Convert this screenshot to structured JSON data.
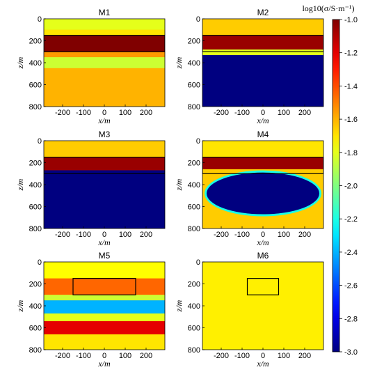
{
  "chart_data": {
    "type": "heatmap",
    "colorbar": {
      "title": "log10(σ/S·m⁻¹)",
      "ticks": [
        "-1.0",
        "-1.2",
        "-1.4",
        "-1.6",
        "-1.8",
        "-2.0",
        "-2.2",
        "-2.4",
        "-2.6",
        "-2.8",
        "-3.0"
      ],
      "tick_values": [
        -1.0,
        -1.2,
        -1.4,
        -1.6,
        -1.8,
        -2.0,
        -2.2,
        -2.4,
        -2.6,
        -2.8,
        -3.0
      ],
      "range": [
        -3.0,
        -1.0
      ],
      "colormap": "jet"
    },
    "axes": {
      "xlabel": "x/m",
      "ylabel": "z/m",
      "xlim": [
        -290,
        290
      ],
      "ylim": [
        0,
        800
      ],
      "xticks": [
        "-200",
        "-100",
        "0",
        "100",
        "200"
      ],
      "xtick_values": [
        -200,
        -100,
        0,
        100,
        200
      ],
      "yticks": [
        "0",
        "200",
        "400",
        "600",
        "800"
      ],
      "ytick_values": [
        0,
        200,
        400,
        600,
        800
      ]
    },
    "panels": [
      {
        "title": "M1",
        "background": -1.65,
        "layers": [
          {
            "z": [
              0,
              100
            ],
            "value": -1.8
          },
          {
            "z": [
              100,
              150
            ],
            "value": -1.7
          },
          {
            "z": [
              150,
              300
            ],
            "value": -1.0
          },
          {
            "z": [
              300,
              350
            ],
            "value": -1.55
          },
          {
            "z": [
              350,
              450
            ],
            "value": -1.85
          },
          {
            "z": [
              450,
              800
            ],
            "value": -1.6
          }
        ],
        "outline": {
          "x": [
            -290,
            290
          ],
          "z": [
            150,
            300
          ]
        }
      },
      {
        "title": "M2",
        "background": -3.0,
        "layers": [
          {
            "z": [
              0,
              150
            ],
            "value": -1.65
          },
          {
            "z": [
              150,
              280
            ],
            "value": -1.05
          },
          {
            "z": [
              280,
              330
            ],
            "value": -1.8
          },
          {
            "z": [
              330,
              800
            ],
            "value": -3.0
          }
        ],
        "outline": {
          "x": [
            -290,
            290
          ],
          "z": [
            150,
            300
          ]
        }
      },
      {
        "title": "M3",
        "background": -3.0,
        "layers": [
          {
            "z": [
              0,
              150
            ],
            "value": -1.65
          },
          {
            "z": [
              150,
              270
            ],
            "value": -1.05
          },
          {
            "z": [
              270,
              800
            ],
            "value": -3.0
          }
        ],
        "outline": {
          "x": [
            -290,
            290
          ],
          "z": [
            150,
            300
          ]
        }
      },
      {
        "title": "M4",
        "background": -1.7,
        "layers": [
          {
            "z": [
              0,
              150
            ],
            "value": -1.7
          },
          {
            "z": [
              150,
              260
            ],
            "value": -1.05
          },
          {
            "z": [
              260,
              800
            ],
            "value": -1.65
          }
        ],
        "ellipse": {
          "cx": 0,
          "cz": 480,
          "rx": 270,
          "rz": 190,
          "value": -3.0
        },
        "outline": {
          "x": [
            -290,
            290
          ],
          "z": [
            150,
            300
          ]
        }
      },
      {
        "title": "M5",
        "background": -1.7,
        "layers": [
          {
            "z": [
              0,
              150
            ],
            "value": -1.75
          },
          {
            "z": [
              150,
              300
            ],
            "value": -1.45
          },
          {
            "z": [
              300,
              350
            ],
            "value": -1.85
          },
          {
            "z": [
              350,
              470
            ],
            "value": -2.4
          },
          {
            "z": [
              470,
              540
            ],
            "value": -1.8
          },
          {
            "z": [
              540,
              660
            ],
            "value": -1.2
          },
          {
            "z": [
              660,
              800
            ],
            "value": -1.7
          }
        ],
        "outline": {
          "x": [
            -150,
            150
          ],
          "z": [
            150,
            300
          ]
        }
      },
      {
        "title": "M6",
        "background": -1.72,
        "layers": [
          {
            "z": [
              0,
              800
            ],
            "value": -1.72
          }
        ],
        "outline": {
          "x": [
            -75,
            75
          ],
          "z": [
            150,
            300
          ]
        }
      }
    ]
  }
}
